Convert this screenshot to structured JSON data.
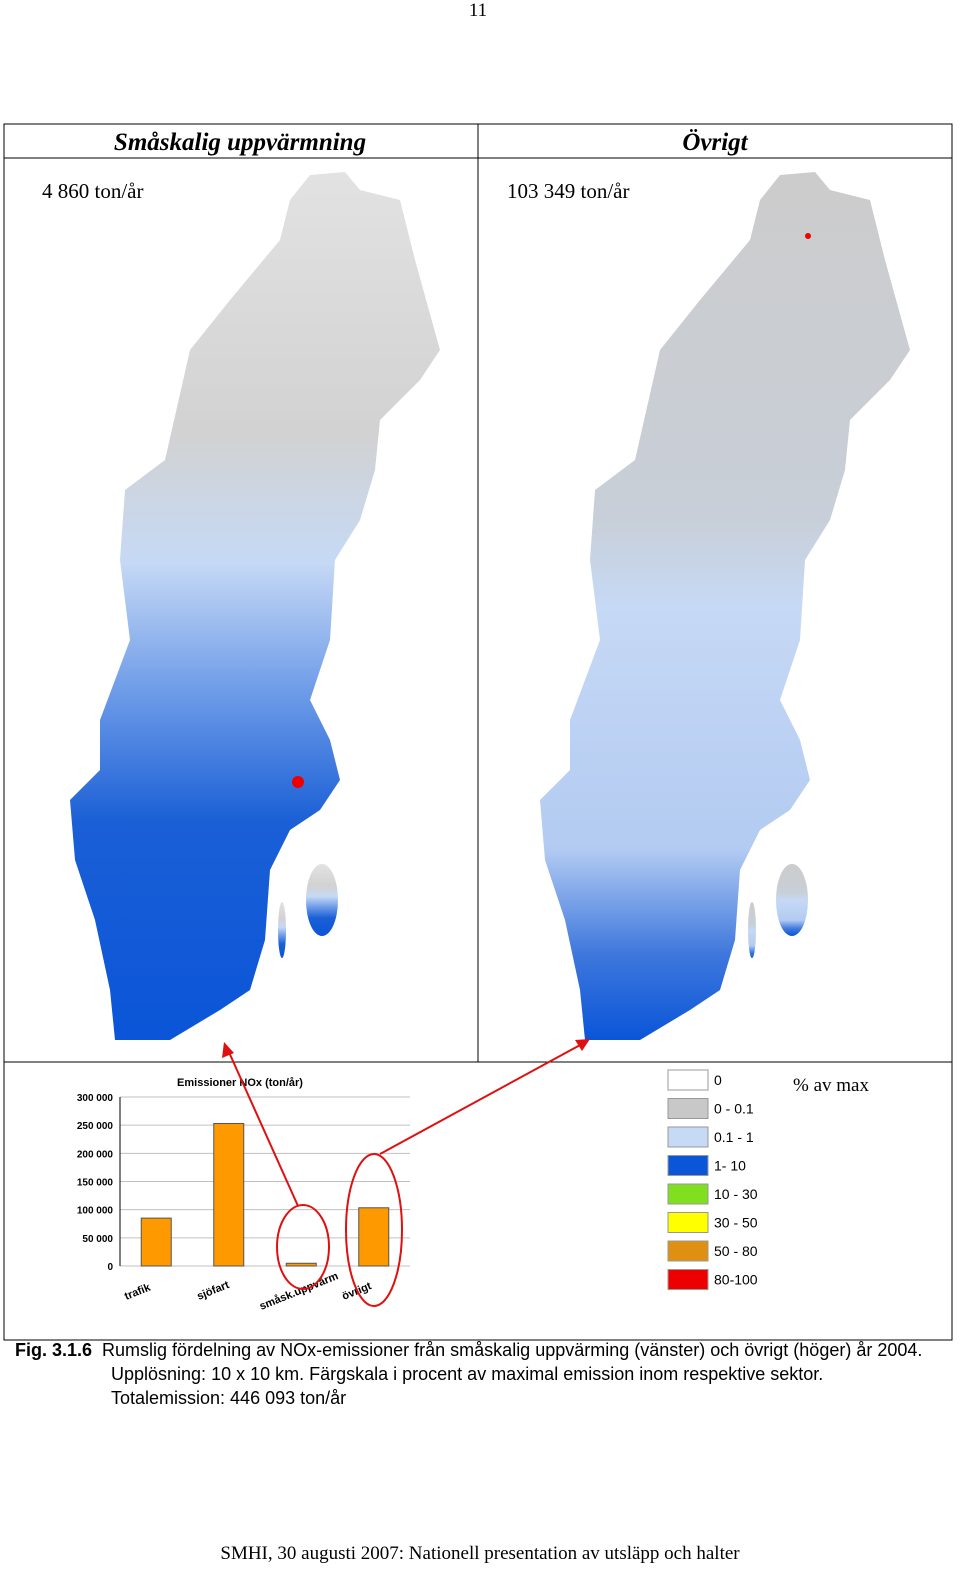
{
  "page_number": "11",
  "panels": [
    {
      "title": "Småskalig uppvärmning",
      "total": "4 860 ton/år"
    },
    {
      "title": "Övrigt",
      "total": "103 349 ton/år"
    }
  ],
  "chart_data": {
    "type": "bar",
    "title": "Emissioner NOx (ton/år)",
    "categories": [
      "trafik",
      "sjöfart",
      "småsk.uppvärm",
      "övrigt"
    ],
    "values": [
      85000,
      253000,
      4860,
      103349
    ],
    "color": "#ff9900",
    "ylim": [
      0,
      300000
    ],
    "yticks": [
      0,
      {
        "value": 50000,
        "label": "50 000"
      },
      {
        "value": 100000,
        "label": "100 000"
      },
      {
        "value": 150000,
        "label": "150 000"
      },
      {
        "value": 200000,
        "label": "200 000"
      },
      {
        "value": 250000,
        "label": "250 000"
      },
      {
        "value": 300000,
        "label": "300 000"
      }
    ],
    "grid": true
  },
  "legend": {
    "title": "% av max",
    "items": [
      {
        "label": "0",
        "color": "#ffffff"
      },
      {
        "label": "0 - 0.1",
        "color": "#c8c8c8"
      },
      {
        "label": "0.1 - 1",
        "color": "#c6d9f5"
      },
      {
        "label": "1- 10",
        "color": "#0a55d8"
      },
      {
        "label": "10 - 30",
        "color": "#80e020"
      },
      {
        "label": "30 - 50",
        "color": "#ffff00"
      },
      {
        "label": "50 - 80",
        "color": "#e09010"
      },
      {
        "label": "80-100",
        "color": "#ee0000"
      }
    ]
  },
  "caption": {
    "label": "Fig. 3.1.6",
    "text": "Rumslig fördelning av NOx-emissioner från småskalig uppvärming (vänster) och övrigt (höger) år 2004. Upplösning: 10 x 10 km. Färgskala i procent av maximal emission inom respektive sektor. Totalemission: 446 093 ton/år"
  },
  "footer": "SMHI, 30 augusti 2007: Nationell presentation av utsläpp och halter"
}
